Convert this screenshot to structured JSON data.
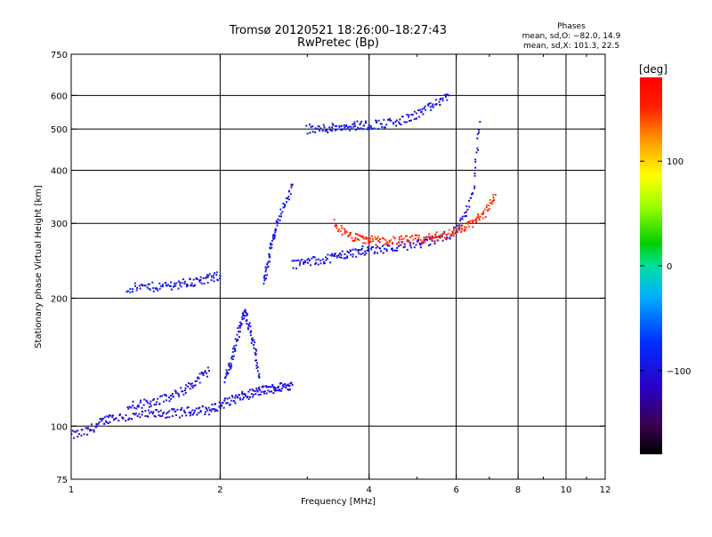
{
  "title": "Tromsø 20120521 18:26:00–18:27:43",
  "subtitle": "RwPretec (Bp)",
  "phases": {
    "heading": "Phases",
    "line_o": "mean, sd,O: −82.0, 14.9",
    "line_x": "mean, sd,X: 101.3, 22.5"
  },
  "chart_data": {
    "type": "scatter",
    "xlabel": "Frequency [MHz]",
    "ylabel": "Stationary phase Virtual Height [km]",
    "x_scale": "log",
    "y_scale": "log",
    "xlim": [
      1,
      12
    ],
    "ylim": [
      75,
      750
    ],
    "x_ticks": [
      1,
      2,
      4,
      6,
      8,
      10,
      12
    ],
    "x_tick_labels": [
      "1",
      "2",
      "4",
      "6",
      "8",
      "10",
      "12"
    ],
    "y_ticks": [
      75,
      100,
      200,
      300,
      400,
      500,
      600,
      750
    ],
    "y_tick_labels": [
      "75",
      "100",
      "200",
      "300",
      "400",
      "500",
      "600",
      "750"
    ],
    "grid_x": [
      2,
      4,
      6,
      8,
      10
    ],
    "grid_y": [
      100,
      200,
      300,
      400,
      500,
      600
    ],
    "grid": true,
    "colorbar": {
      "label": "[deg]",
      "ticks": [
        100,
        0,
        -100
      ],
      "tick_labels": [
        "100",
        "0",
        "−100"
      ],
      "range": [
        -180,
        180
      ]
    },
    "traces": [
      {
        "x": [
          1.0,
          1.08,
          1.15,
          1.2,
          1.3,
          1.4,
          1.5,
          1.6,
          1.7,
          1.8,
          1.9,
          2.0,
          2.1,
          2.2,
          2.3,
          2.4,
          2.5,
          2.6,
          2.7,
          2.8
        ],
        "y": [
          95,
          97,
          102,
          105,
          105,
          106,
          107,
          107,
          108,
          109,
          109,
          112,
          115,
          117,
          119,
          121,
          122,
          123,
          124,
          125
        ],
        "phase": -100
      },
      {
        "x": [
          1.3,
          1.4,
          1.5,
          1.6,
          1.7,
          1.8,
          1.9
        ],
        "y": [
          112,
          113,
          115,
          117,
          122,
          128,
          135
        ],
        "phase": -100
      },
      {
        "x": [
          2.05,
          2.1,
          2.15,
          2.2,
          2.25,
          2.3,
          2.35,
          2.4
        ],
        "y": [
          130,
          140,
          155,
          175,
          185,
          170,
          150,
          130
        ],
        "phase": -95
      },
      {
        "x": [
          1.3,
          1.4,
          1.5,
          1.6,
          1.7,
          1.8,
          1.9,
          2.0
        ],
        "y": [
          211,
          212,
          213,
          215,
          217,
          219,
          222,
          226
        ],
        "phase": -95
      },
      {
        "x": [
          2.45,
          2.5,
          2.55,
          2.6,
          2.7,
          2.8
        ],
        "y": [
          220,
          240,
          270,
          300,
          330,
          370
        ],
        "phase": -90
      },
      {
        "x": [
          2.8,
          3.0,
          3.2,
          3.4,
          3.6,
          3.8,
          4.0,
          4.3,
          4.6,
          5.0,
          5.3,
          5.6,
          5.9,
          6.2,
          6.5,
          6.7
        ],
        "y": [
          240,
          243,
          246,
          250,
          254,
          257,
          260,
          262,
          265,
          268,
          272,
          278,
          285,
          305,
          360,
          520
        ],
        "phase": -98
      },
      {
        "x": [
          3.4,
          3.6,
          3.8,
          4.0,
          4.2,
          4.5,
          4.8,
          5.1,
          5.4,
          5.7,
          6.0,
          6.3,
          6.6,
          6.9,
          7.2
        ],
        "y": [
          300,
          282,
          276,
          274,
          273,
          273,
          274,
          275,
          278,
          282,
          288,
          295,
          305,
          320,
          350
        ],
        "phase": 150
      },
      {
        "x": [
          3.0,
          3.2,
          3.4,
          3.6,
          3.8,
          4.0,
          4.3,
          4.6,
          4.9,
          5.2,
          5.5,
          5.8
        ],
        "y": [
          500,
          500,
          505,
          508,
          510,
          512,
          515,
          520,
          535,
          555,
          575,
          600
        ],
        "phase": -95
      }
    ]
  }
}
